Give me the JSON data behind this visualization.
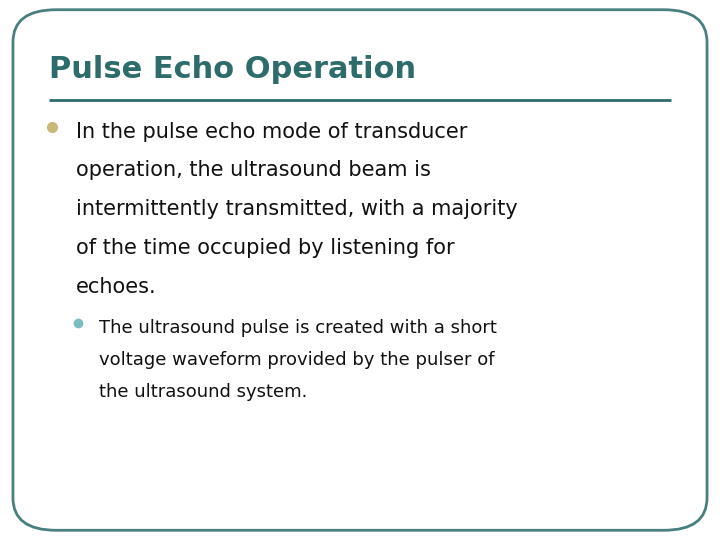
{
  "title": "Pulse Echo Operation",
  "title_color": "#2e6b6b",
  "title_fontsize": 22,
  "divider_color": "#2e6b6b",
  "background_color": "#ffffff",
  "border_color": "#4a7f7f",
  "border_linewidth": 2.0,
  "bullet1_text_lines": [
    "In the pulse echo mode of transducer",
    "operation, the ultrasound beam is",
    "intermittently transmitted, with a majority",
    "of the time occupied by listening for",
    "echoes."
  ],
  "bullet1_color": "#c8b87a",
  "bullet1_fontsize": 15,
  "bullet2_text_lines": [
    "The ultrasound pulse is created with a short",
    "voltage waveform provided by the pulser of",
    "the ultrasound system."
  ],
  "bullet2_color": "#7abfbf",
  "bullet2_fontsize": 13,
  "text_color": "#111111",
  "fig_width": 7.2,
  "fig_height": 5.4,
  "dpi": 100
}
